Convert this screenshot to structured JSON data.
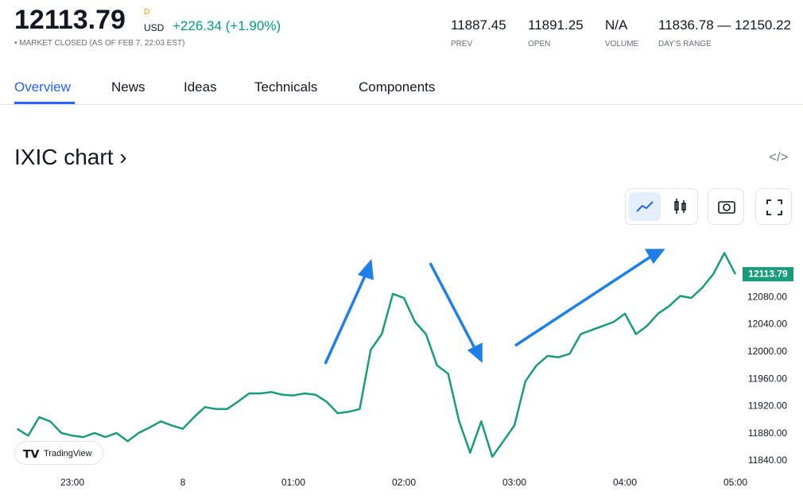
{
  "header": {
    "price": "12113.79",
    "marker": "D",
    "currency": "USD",
    "change": "+226.34 (+1.90%)",
    "status": "MARKET CLOSED (AS OF FEB 7, 22:03 EST)",
    "stats": [
      {
        "value": "11887.45",
        "label": "PREV"
      },
      {
        "value": "11891.25",
        "label": "OPEN"
      },
      {
        "value": "N/A",
        "label": "VOLUME"
      },
      {
        "value": "11836.78 — 12150.22",
        "label": "DAY'S RANGE"
      }
    ]
  },
  "tabs": [
    "Overview",
    "News",
    "Ideas",
    "Technicals",
    "Components"
  ],
  "chart_title": "IXIC chart ›",
  "watermark": "TradingView",
  "chart_data": {
    "type": "line",
    "color": "#1a9b7c",
    "x": [
      -1.5,
      -1.4,
      -1.3,
      -1.2,
      -1.1,
      -1.0,
      -0.9,
      -0.8,
      -0.7,
      -0.6,
      -0.5,
      -0.4,
      -0.3,
      -0.2,
      -0.1,
      0,
      0.1,
      0.2,
      0.3,
      0.4,
      0.5,
      0.6,
      0.7,
      0.8,
      0.9,
      1.0,
      1.1,
      1.2,
      1.3,
      1.4,
      1.5,
      1.6,
      1.7,
      1.8,
      1.9,
      2.0,
      2.1,
      2.2,
      2.3,
      2.4,
      2.5,
      2.6,
      2.7,
      2.8,
      2.9,
      3.0,
      3.1,
      3.2,
      3.3,
      3.4,
      3.5,
      3.6,
      3.7,
      3.8,
      3.9,
      4.0,
      4.1,
      4.2,
      4.3,
      4.4,
      4.5,
      4.6,
      4.7,
      4.8,
      4.9,
      5.0
    ],
    "values": [
      11887,
      11877,
      11904,
      11898,
      11881,
      11877,
      11875,
      11881,
      11875,
      11881,
      11869,
      11881,
      11889,
      11898,
      11892,
      11887,
      11904,
      11919,
      11916,
      11916,
      11927,
      11939,
      11939,
      11941,
      11937,
      11936,
      11939,
      11937,
      11927,
      11910,
      11912,
      11916,
      12003,
      12026,
      12085,
      12079,
      12044,
      12026,
      11980,
      11968,
      11898,
      11852,
      11898,
      11846,
      11869,
      11892,
      11957,
      11980,
      11994,
      11992,
      11997,
      12026,
      12032,
      12038,
      12044,
      12056,
      12026,
      12038,
      12056,
      12067,
      12082,
      12079,
      12094,
      12114,
      12145,
      12113.79
    ],
    "xlim": [
      -1.5,
      5.1
    ],
    "ylim": [
      11820,
      12170
    ],
    "xticks": [
      {
        "value": -1,
        "label": "23:00"
      },
      {
        "value": 0,
        "label": "8"
      },
      {
        "value": 1,
        "label": "01:00"
      },
      {
        "value": 2,
        "label": "02:00"
      },
      {
        "value": 3,
        "label": "03:00"
      },
      {
        "value": 4,
        "label": "04:00"
      },
      {
        "value": 5,
        "label": "05:00"
      }
    ],
    "yticks": [
      {
        "value": 11840,
        "label": "11840.00"
      },
      {
        "value": 11880,
        "label": "11880.00"
      },
      {
        "value": 11920,
        "label": "11920.00"
      },
      {
        "value": 11960,
        "label": "11960.00"
      },
      {
        "value": 12000,
        "label": "12000.00"
      },
      {
        "value": 12040,
        "label": "12040.00"
      },
      {
        "value": 12080,
        "label": "12080.00"
      }
    ]
  }
}
